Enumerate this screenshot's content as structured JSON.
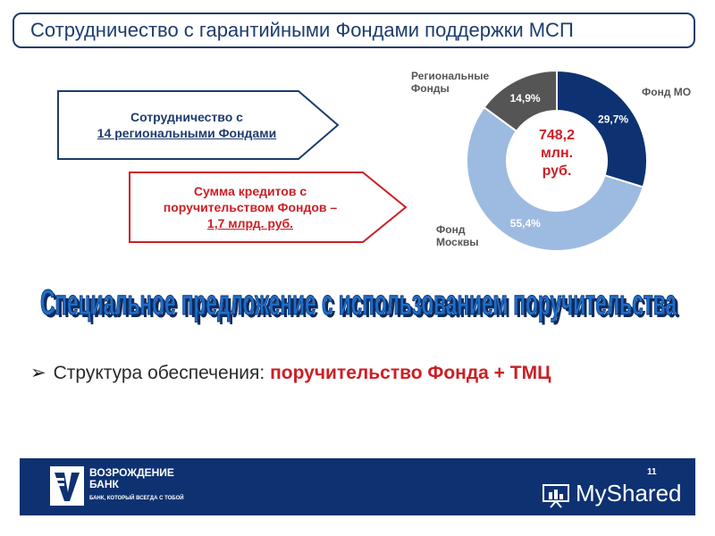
{
  "title": "Сотрудничество с гарантийными Фондами поддержки МСП",
  "arrow1": {
    "line1": "Сотрудничество с",
    "line2": "14 региональными Фондами",
    "border": "#1e3c6e",
    "text_color": "#1e3c6e"
  },
  "arrow2": {
    "line1": "Сумма кредитов с",
    "line2": "поручительством Фондов –",
    "line3": "1,7 млрд. руб.",
    "border": "#cc1f24",
    "text_color": "#cc1f24"
  },
  "chart_data": {
    "type": "pie",
    "center_label": [
      "748,2",
      "млн.",
      "руб."
    ],
    "series": [
      {
        "name": "Фонд МО",
        "value": 29.7,
        "label": "29,7%",
        "color": "#0e3271"
      },
      {
        "name": "Фонд Москвы",
        "value": 55.4,
        "label": "55,4%",
        "color": "#9dbbe0"
      },
      {
        "name": "Региональные Фонды",
        "value": 14.9,
        "label": "14,9%",
        "color": "#555555"
      }
    ],
    "labels": {
      "fond_mo": "Фонд МО",
      "regional": [
        "Региональные",
        "Фонды"
      ],
      "moscow": [
        "Фонд",
        "Москвы"
      ]
    }
  },
  "heading": "Специальное предложение с использованием поручительства",
  "bullet": {
    "lead": "Структура обеспечения:",
    "highlight": "поручительство Фонда + ТМЦ"
  },
  "footer": {
    "bank_name": [
      "ВОЗРОЖДЕНИЕ",
      "БАНК"
    ],
    "slogan": "БАНК, КОТОРЫЙ ВСЕГДА С ТОБОЙ",
    "page_number": "11",
    "watermark": "MyShared"
  },
  "colors": {
    "navy": "#0e3271",
    "red": "#cc1f24",
    "heading_blue": "#1e6fc9"
  }
}
